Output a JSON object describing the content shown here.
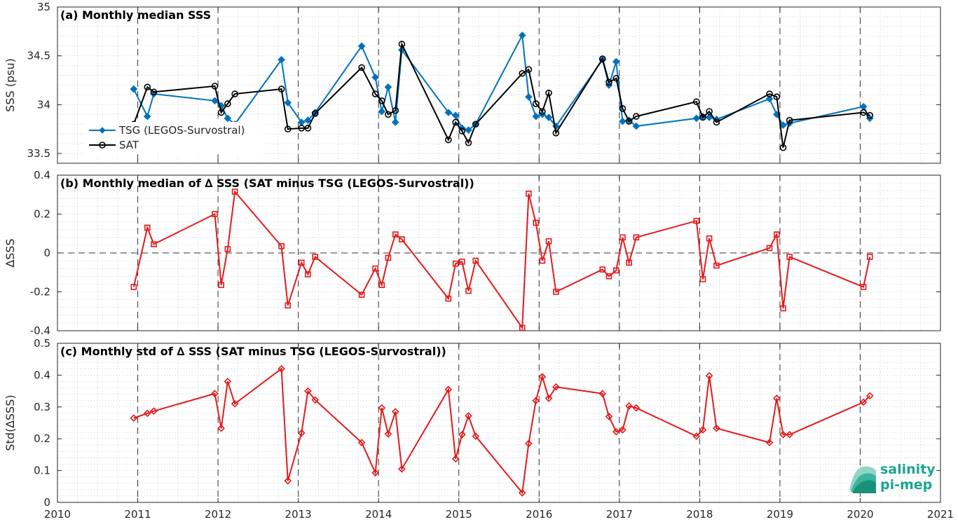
{
  "logo": {
    "line1": "salinity",
    "line2": "pi-mep"
  },
  "x_axis": {
    "xlim": [
      2010,
      2021
    ],
    "ticks": [
      "2010",
      "2011",
      "2012",
      "2013",
      "2014",
      "2015",
      "2016",
      "2017",
      "2018",
      "2019",
      "2020",
      "2021"
    ],
    "tick_values": [
      2010,
      2011,
      2012,
      2013,
      2014,
      2015,
      2016,
      2017,
      2018,
      2019,
      2020,
      2021
    ]
  },
  "colors": {
    "tsg": "#0072BD",
    "sat": "#000000",
    "delta": "#e31a1c",
    "grid": "#c8c8c8",
    "year_lines": "#333333"
  },
  "chart_data": [
    {
      "type": "line",
      "title": "(a) Monthly median SSS",
      "ylabel": "SSS (psu)",
      "xlim": [
        2010,
        2021
      ],
      "ylim": [
        33.4,
        35
      ],
      "yticks": [
        "33.5",
        "34",
        "34.5",
        "35"
      ],
      "ytick_values": [
        33.5,
        34,
        34.5,
        35
      ],
      "grid": "dotted",
      "legend_position": "lower-left",
      "series": [
        {
          "name": "TSG (LEGOS-Survostral)",
          "marker": "diamond",
          "color": "#0072BD",
          "x": [
            2010.95,
            2011.12,
            2011.2,
            2011.96,
            2012.04,
            2012.12,
            2012.21,
            2012.79,
            2012.87,
            2013.04,
            2013.12,
            2013.21,
            2013.79,
            2013.96,
            2014.04,
            2014.12,
            2014.21,
            2014.29,
            2014.87,
            2014.96,
            2015.04,
            2015.12,
            2015.21,
            2015.79,
            2015.87,
            2015.96,
            2016.04,
            2016.12,
            2016.21,
            2016.79,
            2016.87,
            2016.96,
            2017.04,
            2017.12,
            2017.21,
            2017.96,
            2018.04,
            2018.12,
            2018.21,
            2018.87,
            2018.96,
            2019.04,
            2019.12,
            2020.04,
            2020.12
          ],
          "values": [
            34.16,
            33.88,
            34.11,
            34.04,
            33.99,
            33.86,
            33.8,
            34.46,
            34.02,
            33.82,
            33.84,
            33.92,
            34.6,
            34.28,
            33.93,
            34.18,
            33.82,
            34.56,
            33.92,
            33.89,
            33.76,
            33.74,
            33.8,
            34.71,
            34.08,
            33.88,
            33.9,
            33.87,
            33.78,
            34.46,
            34.2,
            34.44,
            33.83,
            33.84,
            33.78,
            33.86,
            33.88,
            33.87,
            33.85,
            34.06,
            33.9,
            33.79,
            33.81,
            33.98,
            33.86
          ]
        },
        {
          "name": "SAT",
          "marker": "circle",
          "color": "#000000",
          "x": [
            2010.95,
            2011.12,
            2011.2,
            2011.96,
            2012.04,
            2012.12,
            2012.21,
            2012.79,
            2012.87,
            2013.04,
            2013.12,
            2013.21,
            2013.79,
            2013.96,
            2014.04,
            2014.12,
            2014.21,
            2014.29,
            2014.87,
            2014.96,
            2015.04,
            2015.12,
            2015.21,
            2015.79,
            2015.87,
            2015.96,
            2016.04,
            2016.12,
            2016.21,
            2016.79,
            2016.87,
            2016.96,
            2017.04,
            2017.12,
            2017.21,
            2017.96,
            2018.04,
            2018.12,
            2018.21,
            2018.87,
            2018.96,
            2019.04,
            2019.12,
            2020.04,
            2020.12
          ],
          "values": [
            33.8,
            34.18,
            34.13,
            34.19,
            33.92,
            34.01,
            34.11,
            34.16,
            33.75,
            33.76,
            33.76,
            33.91,
            34.38,
            34.11,
            34.04,
            33.9,
            33.94,
            34.62,
            33.64,
            33.82,
            33.73,
            33.61,
            33.8,
            34.32,
            34.36,
            34.01,
            33.93,
            34.12,
            33.71,
            34.47,
            34.23,
            34.27,
            33.96,
            33.83,
            33.88,
            34.03,
            33.87,
            33.93,
            33.82,
            34.11,
            34.08,
            33.56,
            33.84,
            33.92,
            33.89
          ]
        }
      ]
    },
    {
      "type": "line",
      "title": "(b) Monthly median of ∆ SSS (SAT minus TSG (LEGOS-Survostral))",
      "ylabel": "∆SSS",
      "xlim": [
        2010,
        2021
      ],
      "ylim": [
        -0.4,
        0.4
      ],
      "yticks": [
        "-0.4",
        "-0.2",
        "0",
        "0.2",
        "0.4"
      ],
      "ytick_values": [
        -0.4,
        -0.2,
        0,
        0.2,
        0.4
      ],
      "zero_line": true,
      "grid": "dotted",
      "series": [
        {
          "marker": "square",
          "color": "#e31a1c",
          "x": [
            2010.95,
            2011.12,
            2011.2,
            2011.96,
            2012.04,
            2012.12,
            2012.21,
            2012.79,
            2012.87,
            2013.04,
            2013.12,
            2013.21,
            2013.79,
            2013.96,
            2014.04,
            2014.12,
            2014.21,
            2014.29,
            2014.87,
            2014.96,
            2015.04,
            2015.12,
            2015.21,
            2015.79,
            2015.87,
            2015.96,
            2016.04,
            2016.12,
            2016.21,
            2016.79,
            2016.87,
            2016.96,
            2017.04,
            2017.12,
            2017.21,
            2017.96,
            2018.04,
            2018.12,
            2018.21,
            2018.87,
            2018.96,
            2019.04,
            2019.12,
            2020.04,
            2020.12
          ],
          "values": [
            -0.175,
            0.13,
            0.045,
            0.2,
            -0.165,
            0.02,
            0.315,
            0.035,
            -0.27,
            -0.05,
            -0.11,
            -0.02,
            -0.215,
            -0.08,
            -0.165,
            -0.025,
            0.095,
            0.07,
            -0.235,
            -0.055,
            -0.045,
            -0.195,
            -0.04,
            -0.385,
            0.305,
            0.155,
            -0.04,
            0.06,
            -0.2,
            -0.085,
            -0.12,
            -0.09,
            0.08,
            -0.05,
            0.08,
            0.165,
            -0.135,
            0.075,
            -0.065,
            0.025,
            0.095,
            -0.285,
            -0.02,
            -0.175,
            -0.02
          ]
        }
      ]
    },
    {
      "type": "line",
      "title": "(c) Monthly std of ∆ SSS (SAT minus TSG (LEGOS-Survostral))",
      "ylabel": "Std(∆SSS)",
      "xlim": [
        2010,
        2021
      ],
      "ylim": [
        0,
        0.5
      ],
      "yticks": [
        "0",
        "0.1",
        "0.2",
        "0.3",
        "0.4",
        "0.5"
      ],
      "ytick_values": [
        0,
        0.1,
        0.2,
        0.3,
        0.4,
        0.5
      ],
      "grid": "dotted",
      "series": [
        {
          "marker": "diamond",
          "color": "#e31a1c",
          "x": [
            2010.95,
            2011.12,
            2011.2,
            2011.96,
            2012.04,
            2012.12,
            2012.21,
            2012.79,
            2012.87,
            2013.04,
            2013.12,
            2013.21,
            2013.79,
            2013.96,
            2014.04,
            2014.12,
            2014.21,
            2014.29,
            2014.87,
            2014.96,
            2015.04,
            2015.12,
            2015.21,
            2015.79,
            2015.87,
            2015.96,
            2016.04,
            2016.12,
            2016.21,
            2016.79,
            2016.87,
            2016.96,
            2017.04,
            2017.12,
            2017.21,
            2017.96,
            2018.04,
            2018.12,
            2018.21,
            2018.87,
            2018.96,
            2019.04,
            2019.12,
            2020.04,
            2020.12
          ],
          "values": [
            0.265,
            0.28,
            0.287,
            0.342,
            0.233,
            0.38,
            0.31,
            0.42,
            0.068,
            0.218,
            0.35,
            0.322,
            0.188,
            0.093,
            0.297,
            0.215,
            0.285,
            0.105,
            0.355,
            0.137,
            0.213,
            0.272,
            0.208,
            0.03,
            0.185,
            0.32,
            0.395,
            0.327,
            0.363,
            0.342,
            0.27,
            0.222,
            0.228,
            0.303,
            0.297,
            0.208,
            0.228,
            0.398,
            0.233,
            0.188,
            0.327,
            0.213,
            0.213,
            0.315,
            0.335
          ]
        }
      ]
    }
  ]
}
